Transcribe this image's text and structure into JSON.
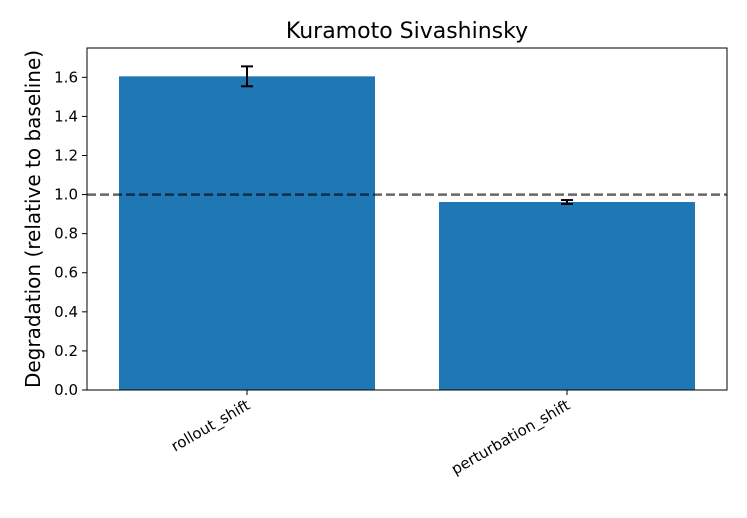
{
  "chart_data": {
    "type": "bar",
    "title": "Kuramoto Sivashinsky",
    "y_label": "Degradation (relative to baseline)",
    "categories": [
      "rollout_shift",
      "perturbation_shift"
    ],
    "values": [
      1.605,
      0.962
    ],
    "error": [
      0.051,
      0.01
    ],
    "color": "#1f77b4",
    "reference_line": 1.0,
    "ylim": [
      0,
      1.75
    ],
    "yticks": [
      {
        "value": 0,
        "label": "0.0"
      },
      0.2,
      0.4,
      0.6,
      0.8,
      {
        "value": 1,
        "label": "1.0"
      },
      1.2,
      1.4,
      1.6
    ]
  }
}
